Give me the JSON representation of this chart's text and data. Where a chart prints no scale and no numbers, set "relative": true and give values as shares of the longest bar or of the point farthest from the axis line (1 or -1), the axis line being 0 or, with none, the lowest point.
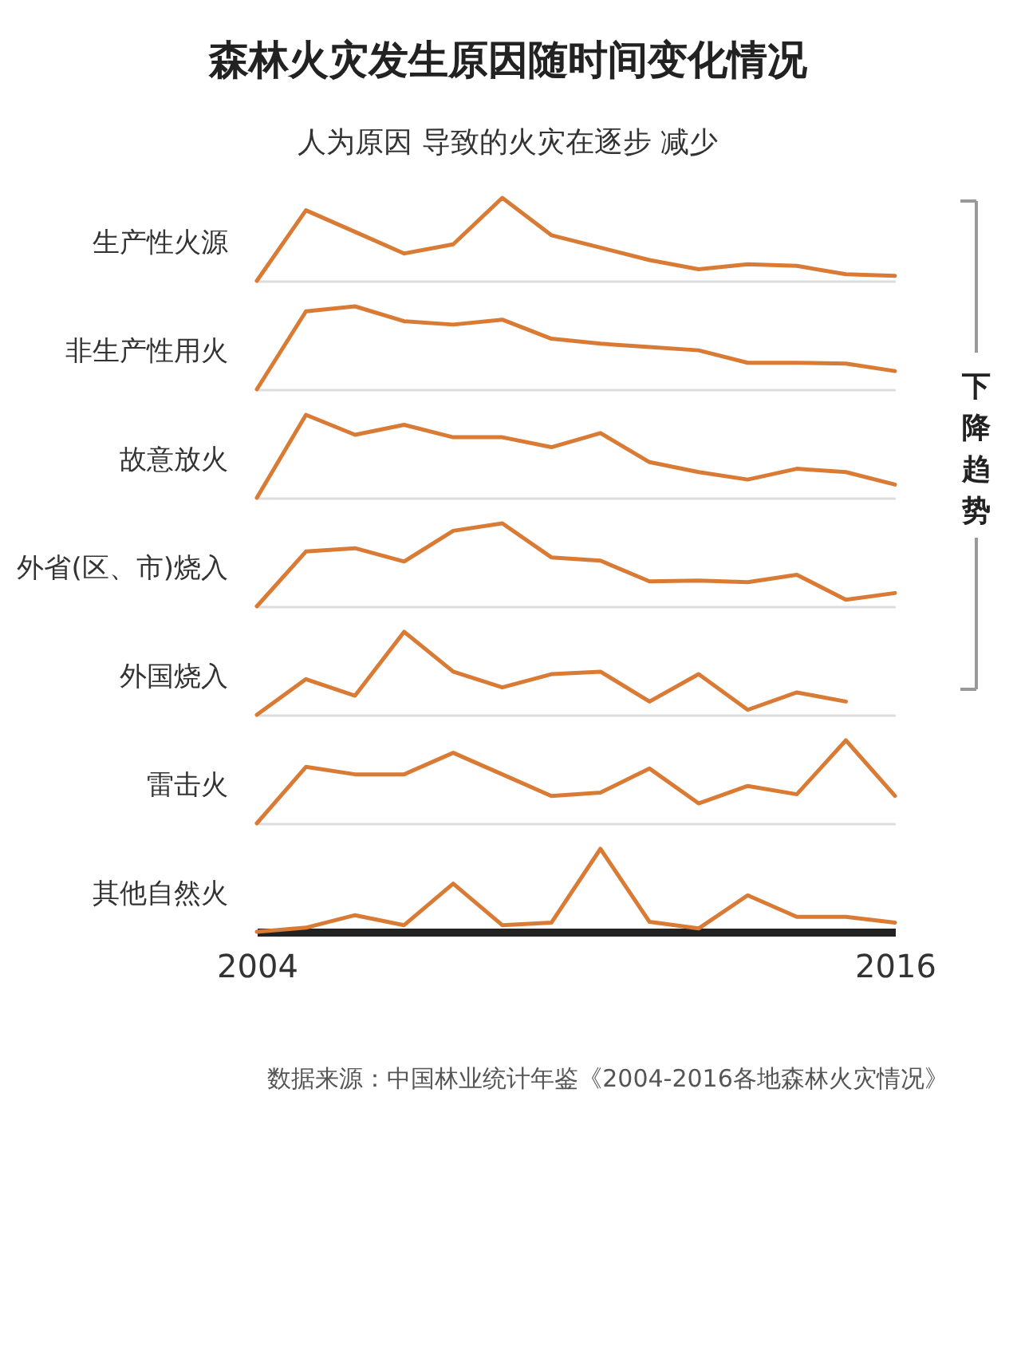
{
  "chart_data": [
    {
      "type": "line",
      "title": "森林火灾发生原因随时间变化情况",
      "subtitle": "人为原因 导致的火灾在逐步 减少",
      "relative": true,
      "tick_labels": false,
      "categories": [
        "2004",
        null,
        null,
        null,
        null,
        null,
        null,
        null,
        null,
        null,
        null,
        null,
        null,
        "2016"
      ],
      "series": [
        {
          "name": "生产性火源",
          "color": "#d97b35",
          "values": [
            0,
            0.85,
            0.59,
            0.33,
            0.44,
            1,
            0.55,
            0.4,
            0.25,
            0.14,
            0.2,
            0.18,
            0.08,
            0.06
          ]
        }
      ]
    },
    {
      "type": "line",
      "relative": true,
      "tick_labels": false,
      "categories": [
        "2004",
        null,
        null,
        null,
        null,
        null,
        null,
        null,
        null,
        null,
        null,
        null,
        null,
        "2016"
      ],
      "series": [
        {
          "name": "非生产性用火",
          "color": "#d97b35",
          "values": [
            0,
            0.94,
            1,
            0.82,
            0.78,
            0.84,
            0.61,
            0.55,
            0.51,
            0.47,
            0.32,
            0.32,
            0.31,
            0.22
          ]
        }
      ]
    },
    {
      "type": "line",
      "relative": true,
      "tick_labels": false,
      "categories": [
        "2004",
        null,
        null,
        null,
        null,
        null,
        null,
        null,
        null,
        null,
        null,
        null,
        null,
        "2016"
      ],
      "series": [
        {
          "name": "故意放火",
          "color": "#d97b35",
          "values": [
            0,
            1,
            0.76,
            0.88,
            0.73,
            0.73,
            0.61,
            0.78,
            0.43,
            0.31,
            0.22,
            0.35,
            0.31,
            0.16
          ]
        }
      ]
    },
    {
      "type": "line",
      "relative": true,
      "tick_labels": false,
      "categories": [
        "2004",
        null,
        null,
        null,
        null,
        null,
        null,
        null,
        null,
        null,
        null,
        null,
        null,
        "2016"
      ],
      "series": [
        {
          "name": "外省(区、市)烧入",
          "color": "#d97b35",
          "values": [
            0,
            0.66,
            0.7,
            0.54,
            0.91,
            1,
            0.59,
            0.55,
            0.3,
            0.31,
            0.29,
            0.38,
            0.08,
            0.16
          ]
        }
      ]
    },
    {
      "type": "line",
      "relative": true,
      "tick_labels": false,
      "categories": [
        "2004",
        null,
        null,
        null,
        null,
        null,
        null,
        null,
        null,
        null,
        null,
        null,
        null,
        "2016"
      ],
      "series": [
        {
          "name": "外国烧入",
          "color": "#d97b35",
          "values": [
            0,
            0.43,
            0.23,
            1,
            0.52,
            0.33,
            0.49,
            0.52,
            0.16,
            0.49,
            0.06,
            0.27,
            0.16,
            null
          ]
        }
      ]
    },
    {
      "type": "line",
      "relative": true,
      "tick_labels": false,
      "categories": [
        "2004",
        null,
        null,
        null,
        null,
        null,
        null,
        null,
        null,
        null,
        null,
        null,
        null,
        "2016"
      ],
      "series": [
        {
          "name": "雷击火",
          "color": "#d97b35",
          "values": [
            0,
            0.68,
            0.59,
            0.59,
            0.85,
            0.59,
            0.33,
            0.37,
            0.66,
            0.24,
            0.45,
            0.35,
            1,
            0.33
          ]
        }
      ]
    },
    {
      "type": "line",
      "relative": true,
      "tick_labels": "x",
      "categories": [
        "2004",
        null,
        null,
        null,
        null,
        null,
        null,
        null,
        null,
        null,
        null,
        null,
        null,
        "2016"
      ],
      "series": [
        {
          "name": "其他自然火",
          "color": "#d97b35",
          "values": [
            0,
            0.05,
            0.2,
            0.08,
            0.58,
            0.08,
            0.11,
            1,
            0.12,
            0.04,
            0.44,
            0.18,
            0.18,
            0.11
          ]
        }
      ],
      "annotations": [
        "下降趋势",
        "数据来源：中国林业统计年鉴《2004-2016各地森林火灾情况》"
      ]
    }
  ]
}
